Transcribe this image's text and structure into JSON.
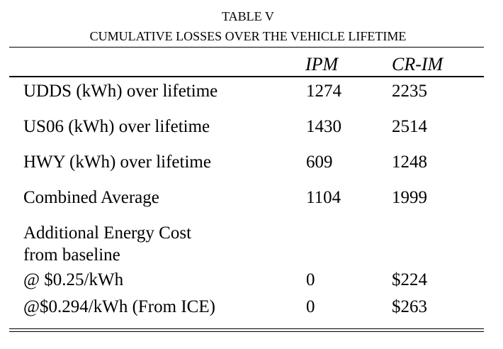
{
  "table": {
    "number": "TABLE V",
    "title": "CUMULATIVE LOSSES OVER THE VEHICLE LIFETIME",
    "columns": [
      "IPM",
      "CR-IM"
    ],
    "rows": [
      {
        "label": "UDDS (kWh) over lifetime",
        "ipm": "1274",
        "crim": "2235"
      },
      {
        "label": "US06 (kWh) over lifetime",
        "ipm": "1430",
        "crim": "2514"
      },
      {
        "label": "HWY (kWh) over lifetime",
        "ipm": "609",
        "crim": "1248"
      },
      {
        "label": "Combined Average",
        "ipm": "1104",
        "crim": "1999"
      }
    ],
    "cost_section": {
      "heading_line1": "Additional Energy Cost",
      "heading_line2": "from baseline",
      "rows": [
        {
          "label": "@ $0.25/kWh",
          "ipm": "0",
          "crim": "$224"
        },
        {
          "label": "@$0.294/kWh (From ICE)",
          "ipm": "0",
          "crim": "$263"
        }
      ]
    }
  }
}
